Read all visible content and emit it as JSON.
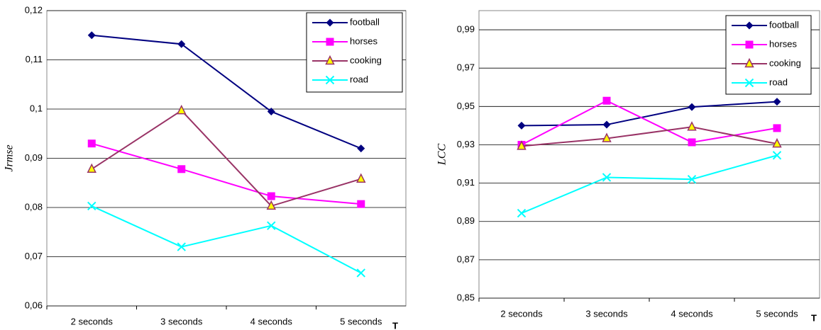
{
  "chart_data": [
    {
      "type": "line",
      "y_label": "Jrmse",
      "x_label": "T",
      "categories": [
        "2 seconds",
        "3 seconds",
        "4 seconds",
        "5 seconds"
      ],
      "ylim": [
        0.06,
        0.12
      ],
      "yticks": [
        {
          "value": 0.06,
          "label": "0,06"
        },
        {
          "value": 0.07,
          "label": "0,07"
        },
        {
          "value": 0.08,
          "label": "0,08"
        },
        {
          "value": 0.09,
          "label": "0,09"
        },
        {
          "value": 0.1,
          "label": "0,1"
        },
        {
          "value": 0.11,
          "label": "0,11"
        },
        {
          "value": 0.12,
          "label": "0,12"
        }
      ],
      "grid": true,
      "legend": "top-right",
      "series": [
        {
          "name": "football",
          "color": "#000080",
          "marker": "diamond",
          "values": [
            0.115,
            0.1132,
            0.0995,
            0.092
          ]
        },
        {
          "name": "horses",
          "color": "#ff00ff",
          "marker": "square",
          "values": [
            0.093,
            0.0878,
            0.0823,
            0.0807
          ]
        },
        {
          "name": "cooking",
          "color": "#993366",
          "marker": "triangle",
          "values": [
            0.0878,
            0.0997,
            0.0803,
            0.0858
          ]
        },
        {
          "name": "road",
          "color": "#00ffff",
          "marker": "x",
          "values": [
            0.0803,
            0.072,
            0.0763,
            0.0667
          ]
        }
      ]
    },
    {
      "type": "line",
      "y_label": "LCC",
      "x_label": "T",
      "categories": [
        "2 seconds",
        "3 seconds",
        "4 seconds",
        "5 seconds"
      ],
      "ylim": [
        0.85,
        1.0
      ],
      "yticks": [
        {
          "value": 0.85,
          "label": "0,85"
        },
        {
          "value": 0.87,
          "label": "0,87"
        },
        {
          "value": 0.89,
          "label": "0,89"
        },
        {
          "value": 0.91,
          "label": "0,91"
        },
        {
          "value": 0.93,
          "label": "0,93"
        },
        {
          "value": 0.95,
          "label": "0,95"
        },
        {
          "value": 0.97,
          "label": "0,97"
        },
        {
          "value": 0.99,
          "label": "0,99"
        }
      ],
      "grid": true,
      "legend": "top-right",
      "series": [
        {
          "name": "football",
          "color": "#000080",
          "marker": "diamond",
          "values": [
            0.94,
            0.9405,
            0.9497,
            0.9525
          ]
        },
        {
          "name": "horses",
          "color": "#ff00ff",
          "marker": "square",
          "values": [
            0.93,
            0.953,
            0.9313,
            0.9387
          ]
        },
        {
          "name": "cooking",
          "color": "#993366",
          "marker": "triangle",
          "values": [
            0.9293,
            0.9333,
            0.9393,
            0.9305
          ]
        },
        {
          "name": "road",
          "color": "#00ffff",
          "marker": "x",
          "values": [
            0.8943,
            0.913,
            0.912,
            0.9245
          ]
        }
      ]
    }
  ]
}
